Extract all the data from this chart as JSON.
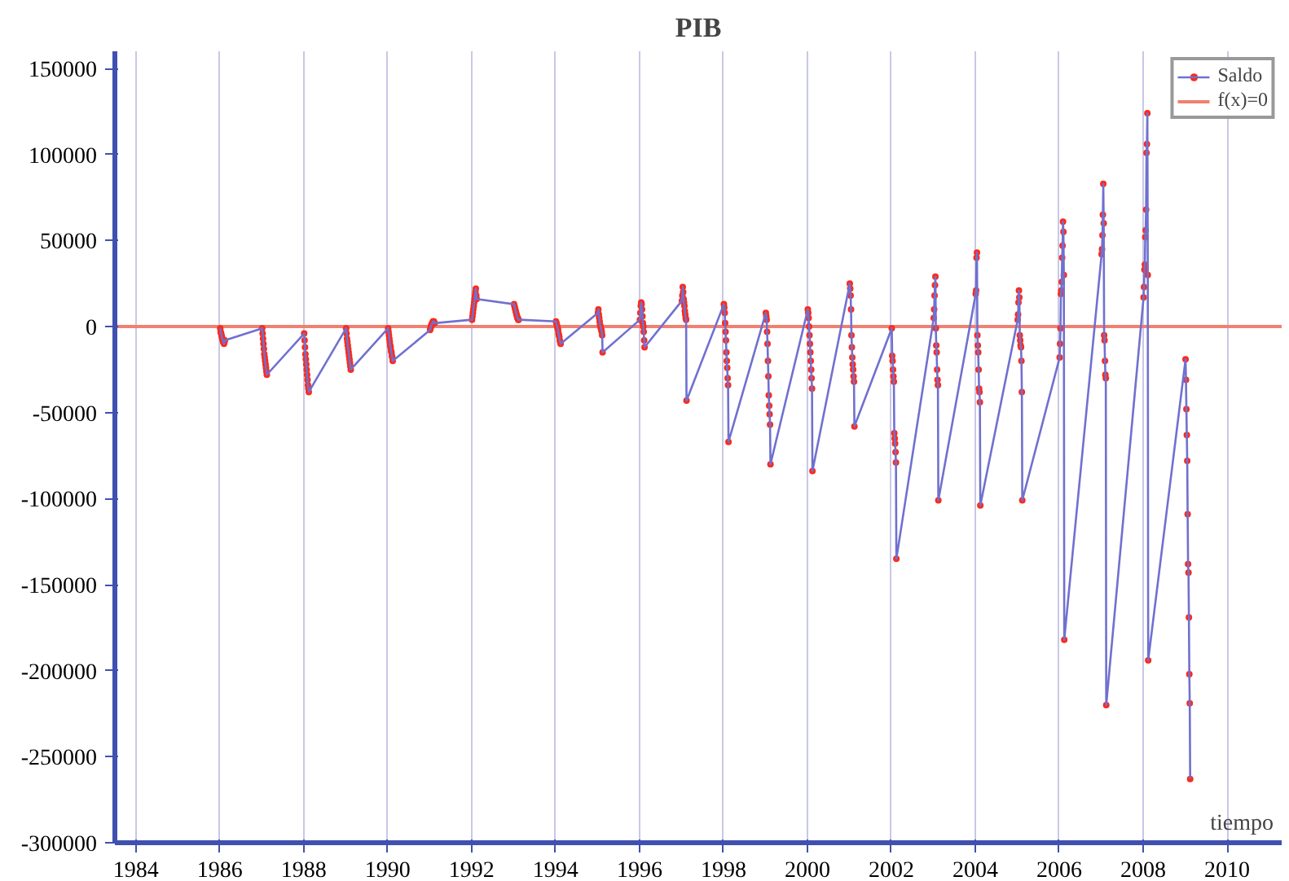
{
  "chart_data": {
    "type": "line",
    "title": "PIB",
    "xlabel": "tiempo",
    "xlim": [
      1983.5,
      2011.3
    ],
    "ylim": [
      -300000,
      160000
    ],
    "xticks": [
      1984,
      1986,
      1988,
      1990,
      1992,
      1994,
      1996,
      1998,
      2000,
      2002,
      2004,
      2006,
      2008,
      2010
    ],
    "yticks": [
      -300000,
      -250000,
      -200000,
      -150000,
      -100000,
      -50000,
      0,
      50000,
      100000,
      150000
    ],
    "grid": "x",
    "legend": "top right",
    "marker": "circle",
    "line_style": "solid",
    "ref_lines": [
      {
        "axis": "y",
        "value": 0,
        "label": "f(x)=0",
        "color": "#f08070",
        "line_style": "solid"
      }
    ],
    "x": [
      1986.01,
      1986.02,
      1986.03,
      1986.04,
      1986.05,
      1986.06,
      1986.07,
      1986.08,
      1986.09,
      1986.1,
      1986.11,
      1986.12,
      1987.01,
      1987.02,
      1987.03,
      1987.04,
      1987.05,
      1987.06,
      1987.07,
      1987.08,
      1987.09,
      1987.1,
      1987.11,
      1987.12,
      1988.01,
      1988.02,
      1988.03,
      1988.04,
      1988.05,
      1988.06,
      1988.07,
      1988.08,
      1988.09,
      1988.1,
      1988.11,
      1988.12,
      1989.01,
      1989.02,
      1989.03,
      1989.04,
      1989.05,
      1989.06,
      1989.07,
      1989.08,
      1989.09,
      1989.1,
      1989.11,
      1989.12,
      1990.01,
      1990.02,
      1990.03,
      1990.04,
      1990.05,
      1990.06,
      1990.07,
      1990.08,
      1990.09,
      1990.1,
      1990.11,
      1990.12,
      1991.01,
      1991.02,
      1991.03,
      1991.04,
      1991.05,
      1991.06,
      1991.07,
      1991.08,
      1991.09,
      1991.1,
      1991.11,
      1991.12,
      1992.01,
      1992.02,
      1992.03,
      1992.04,
      1992.05,
      1992.06,
      1992.07,
      1992.08,
      1992.09,
      1992.1,
      1992.11,
      1992.12,
      1993.01,
      1993.02,
      1993.03,
      1993.04,
      1993.05,
      1993.06,
      1993.07,
      1993.08,
      1993.09,
      1993.1,
      1993.11,
      1993.12,
      1994.01,
      1994.02,
      1994.03,
      1994.04,
      1994.05,
      1994.06,
      1994.07,
      1994.08,
      1994.09,
      1994.1,
      1994.11,
      1994.12,
      1995.01,
      1995.02,
      1995.03,
      1995.04,
      1995.05,
      1995.06,
      1995.07,
      1995.08,
      1995.09,
      1995.1,
      1995.11,
      1995.12,
      1996.01,
      1996.02,
      1996.03,
      1996.04,
      1996.05,
      1996.06,
      1996.07,
      1996.08,
      1996.09,
      1996.1,
      1996.11,
      1996.12,
      1997.01,
      1997.02,
      1997.03,
      1997.04,
      1997.05,
      1997.06,
      1997.07,
      1997.08,
      1997.09,
      1997.1,
      1997.11,
      1997.12,
      1998.01,
      1998.02,
      1998.03,
      1998.04,
      1998.05,
      1998.06,
      1998.07,
      1998.08,
      1998.09,
      1998.1,
      1998.11,
      1998.12,
      1999.01,
      1999.02,
      1999.03,
      1999.04,
      1999.05,
      1999.06,
      1999.07,
      1999.08,
      1999.09,
      1999.1,
      1999.11,
      1999.12,
      2000.01,
      2000.02,
      2000.03,
      2000.04,
      2000.05,
      2000.06,
      2000.07,
      2000.08,
      2000.09,
      2000.1,
      2000.11,
      2000.12,
      2001.01,
      2001.02,
      2001.03,
      2001.04,
      2001.05,
      2001.06,
      2001.07,
      2001.08,
      2001.09,
      2001.1,
      2001.11,
      2001.12,
      2002.01,
      2002.02,
      2002.03,
      2002.04,
      2002.05,
      2002.06,
      2002.07,
      2002.08,
      2002.09,
      2002.1,
      2002.11,
      2002.12,
      2003.01,
      2003.02,
      2003.03,
      2003.04,
      2003.05,
      2003.06,
      2003.07,
      2003.08,
      2003.09,
      2003.1,
      2003.11,
      2003.12,
      2004.01,
      2004.02,
      2004.03,
      2004.04,
      2004.05,
      2004.06,
      2004.07,
      2004.08,
      2004.09,
      2004.1,
      2004.11,
      2004.12,
      2005.01,
      2005.02,
      2005.03,
      2005.04,
      2005.05,
      2005.06,
      2005.07,
      2005.08,
      2005.09,
      2005.1,
      2005.11,
      2005.12,
      2006.01,
      2006.02,
      2006.03,
      2006.04,
      2006.05,
      2006.06,
      2006.07,
      2006.08,
      2006.09,
      2006.1,
      2006.11,
      2006.12,
      2007.01,
      2007.02,
      2007.03,
      2007.04,
      2007.05,
      2007.06,
      2007.07,
      2007.08,
      2007.09,
      2007.1,
      2007.11,
      2007.12,
      2008.01,
      2008.02,
      2008.03,
      2008.04,
      2008.05,
      2008.06,
      2008.07,
      2008.08,
      2008.09,
      2008.1,
      2008.11,
      2008.12,
      2009.01,
      2009.02,
      2009.03,
      2009.04,
      2009.05,
      2009.06,
      2009.07,
      2009.08,
      2009.09,
      2009.1,
      2009.11,
      2009.12
    ],
    "series": [
      {
        "name": "Saldo",
        "color": "#7070d0",
        "values": [
          -1000,
          -3000,
          -4000,
          -5000,
          -6000,
          -7000,
          -8000,
          -9000,
          -9000,
          -10000,
          -9000,
          -8000,
          -1000,
          -4000,
          -7000,
          -10000,
          -13000,
          -16000,
          -18000,
          -20000,
          -22000,
          -24000,
          -26000,
          -28000,
          -4000,
          -8000,
          -12000,
          -16000,
          -19000,
          -22000,
          -25000,
          -28000,
          -31000,
          -34000,
          -36000,
          -38000,
          -1000,
          -4000,
          -7000,
          -9000,
          -11000,
          -13000,
          -15000,
          -17000,
          -19000,
          -21000,
          -23000,
          -25000,
          -1000,
          -3000,
          -5000,
          -7000,
          -9000,
          -11000,
          -12000,
          -14000,
          -15000,
          -17000,
          -18000,
          -20000,
          -2000,
          -1000,
          0,
          1000,
          1000,
          2000,
          2000,
          3000,
          3000,
          3000,
          2000,
          2000,
          4000,
          6000,
          8000,
          10000,
          12000,
          14000,
          16000,
          18000,
          20000,
          22000,
          18000,
          16000,
          13000,
          12000,
          11000,
          10000,
          9000,
          8000,
          7000,
          6000,
          5000,
          5000,
          4000,
          4000,
          3000,
          2000,
          1000,
          0,
          -1000,
          -2000,
          -4000,
          -5000,
          -6000,
          -8000,
          -9000,
          -10000,
          8000,
          10000,
          7000,
          5000,
          3000,
          1000,
          0,
          -1000,
          -2000,
          -3000,
          -5000,
          -15000,
          4000,
          8000,
          12000,
          14000,
          13000,
          10000,
          6000,
          2000,
          0,
          -3000,
          -8000,
          -12000,
          15000,
          18000,
          23000,
          20000,
          16000,
          14000,
          12000,
          9000,
          7000,
          5000,
          4000,
          -43000,
          13000,
          11000,
          8000,
          2000,
          -3000,
          -8000,
          -15000,
          -20000,
          -24000,
          -30000,
          -34000,
          -67000,
          8000,
          6000,
          4000,
          -3000,
          -10000,
          -20000,
          -29000,
          -40000,
          -46000,
          -51000,
          -57000,
          -80000,
          10000,
          8000,
          5000,
          0,
          -5000,
          -10000,
          -15000,
          -20000,
          -25000,
          -30000,
          -36000,
          -84000,
          25000,
          22000,
          18000,
          10000,
          -5000,
          -12000,
          -18000,
          -22000,
          -25000,
          -29000,
          -32000,
          -58000,
          -1000,
          -17000,
          -20000,
          -25000,
          -29000,
          -32000,
          -62000,
          -65000,
          -68000,
          -73000,
          -79000,
          -135000,
          5000,
          10000,
          18000,
          24000,
          29000,
          -1000,
          -11000,
          -15000,
          -25000,
          -31000,
          -34000,
          -101000,
          19000,
          21000,
          40000,
          43000,
          -5000,
          -11000,
          -15000,
          -25000,
          -36000,
          -38000,
          -44000,
          -104000,
          4000,
          7000,
          14000,
          21000,
          17000,
          -5000,
          -8000,
          -11000,
          -12000,
          -20000,
          -38000,
          -101000,
          -18000,
          -10000,
          -1000,
          19000,
          21000,
          26000,
          40000,
          47000,
          61000,
          55000,
          30000,
          -182000,
          42000,
          45000,
          53000,
          65000,
          83000,
          60000,
          -5000,
          -8000,
          -20000,
          -28000,
          -30000,
          -220000,
          17000,
          23000,
          33000,
          36000,
          52000,
          56000,
          68000,
          101000,
          106000,
          124000,
          30000,
          -194000,
          -19000,
          -31000,
          -48000,
          -63000,
          -78000,
          -109000,
          -138000,
          -143000,
          -169000,
          -202000,
          -219000,
          -263000
        ]
      }
    ]
  }
}
